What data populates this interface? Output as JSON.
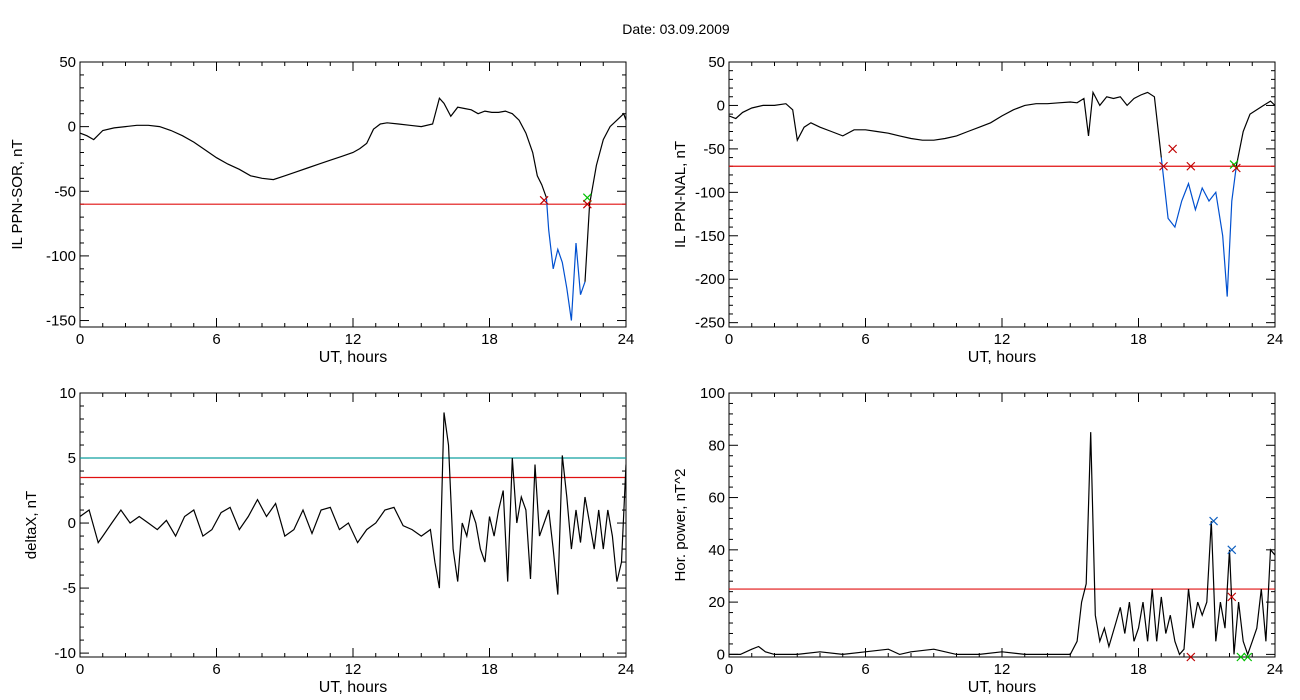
{
  "title": "Date:  03.09.2009",
  "chart_data": [
    {
      "type": "line",
      "panel": "top-left",
      "xlabel": "UT, hours",
      "ylabel": "IL PPN-SOR, nT",
      "xlim": [
        0,
        24
      ],
      "ylim": [
        -155,
        50
      ],
      "xticks": [
        0,
        6,
        12,
        18,
        24
      ],
      "yticks": [
        50,
        0,
        -50,
        -100,
        -150
      ],
      "ytick_labels": [
        "50",
        "0",
        "-50",
        "-100",
        "-150"
      ],
      "series": [
        {
          "color": "#000000",
          "x": [
            0,
            0.3,
            0.6,
            1,
            1.5,
            2,
            2.5,
            3,
            3.5,
            4,
            4.5,
            5,
            5.5,
            6,
            6.5,
            7,
            7.5,
            8,
            8.5,
            9,
            9.5,
            10,
            10.5,
            11,
            11.5,
            12,
            12.3,
            12.6,
            12.9,
            13.2,
            13.5,
            14,
            14.5,
            15,
            15.5,
            15.8,
            16,
            16.3,
            16.6,
            16.9,
            17.2,
            17.5,
            17.8,
            18.1,
            18.4,
            18.7,
            19,
            19.3,
            19.6,
            19.9,
            20.1,
            20.3,
            20.5
          ],
          "y": [
            -5,
            -7,
            -10,
            -3,
            -1,
            0,
            1,
            1,
            0,
            -3,
            -7,
            -12,
            -18,
            -24,
            -29,
            -33,
            -38,
            -40,
            -41,
            -38,
            -35,
            -32,
            -29,
            -26,
            -23,
            -20,
            -17,
            -13,
            -2,
            2,
            3,
            2,
            1,
            0,
            2,
            22,
            18,
            8,
            15,
            14,
            13,
            10,
            12,
            11,
            11,
            12,
            10,
            5,
            -5,
            -20,
            -38,
            -45,
            -55
          ]
        },
        {
          "color": "#0050d0",
          "x": [
            20.5,
            20.6,
            20.8,
            21,
            21.2,
            21.4,
            21.6,
            21.8,
            22,
            22.2
          ],
          "y": [
            -55,
            -80,
            -110,
            -95,
            -105,
            -125,
            -150,
            -90,
            -130,
            -120
          ]
        },
        {
          "color": "#000000",
          "x": [
            22.2,
            22.4,
            22.7,
            23,
            23.3,
            23.6,
            23.9,
            24
          ],
          "y": [
            -120,
            -60,
            -30,
            -10,
            0,
            5,
            10,
            5
          ]
        }
      ],
      "hlines": [
        {
          "y": -60,
          "color": "#e01010"
        }
      ],
      "markers": [
        {
          "x": 20.4,
          "y": -57,
          "color": "#c00000"
        },
        {
          "x": 22.3,
          "y": -55,
          "color": "#00c000"
        },
        {
          "x": 22.3,
          "y": -60,
          "color": "#c00000"
        }
      ]
    },
    {
      "type": "line",
      "panel": "top-right",
      "xlabel": "UT, hours",
      "ylabel": "IL PPN-NAL, nT",
      "xlim": [
        0,
        24
      ],
      "ylim": [
        -255,
        50
      ],
      "xticks": [
        0,
        6,
        12,
        18,
        24
      ],
      "yticks": [
        50,
        0,
        -50,
        -100,
        -150,
        -200,
        -250
      ],
      "ytick_labels": [
        "50",
        "0",
        "-50",
        "-100",
        "-150",
        "-200",
        "-250"
      ],
      "series": [
        {
          "color": "#000000",
          "x": [
            0,
            0.3,
            0.6,
            1,
            1.5,
            2,
            2.5,
            2.8,
            3,
            3.3,
            3.6,
            4,
            4.5,
            5,
            5.5,
            6,
            6.5,
            7,
            7.5,
            8,
            8.5,
            9,
            9.5,
            10,
            10.5,
            11,
            11.5,
            12,
            12.5,
            13,
            13.5,
            14,
            14.5,
            15,
            15.3,
            15.6,
            15.8,
            16,
            16.3,
            16.6,
            16.9,
            17.2,
            17.5,
            17.8,
            18.1,
            18.4,
            18.7,
            19
          ],
          "y": [
            -12,
            -15,
            -8,
            -3,
            0,
            0,
            2,
            -5,
            -40,
            -25,
            -20,
            -25,
            -30,
            -35,
            -28,
            -28,
            -30,
            -32,
            -35,
            -38,
            -40,
            -40,
            -38,
            -35,
            -30,
            -25,
            -20,
            -12,
            -5,
            0,
            2,
            2,
            3,
            4,
            3,
            8,
            -35,
            15,
            0,
            10,
            8,
            10,
            0,
            8,
            12,
            15,
            10,
            -60
          ]
        },
        {
          "color": "#0050d0",
          "x": [
            19,
            19.3,
            19.6,
            19.9,
            20.2,
            20.5,
            20.8,
            21.1,
            21.4,
            21.7,
            21.9,
            22.1,
            22.3
          ],
          "y": [
            -60,
            -130,
            -140,
            -110,
            -90,
            -120,
            -95,
            -110,
            -100,
            -150,
            -220,
            -110,
            -70
          ]
        },
        {
          "color": "#000000",
          "x": [
            22.3,
            22.6,
            22.9,
            23.2,
            23.5,
            23.8,
            24
          ],
          "y": [
            -70,
            -30,
            -10,
            -5,
            0,
            5,
            0
          ]
        }
      ],
      "hlines": [
        {
          "y": -70,
          "color": "#e01010"
        }
      ],
      "markers": [
        {
          "x": 19.1,
          "y": -70,
          "color": "#c00000"
        },
        {
          "x": 19.5,
          "y": -50,
          "color": "#c00000"
        },
        {
          "x": 20.3,
          "y": -70,
          "color": "#c00000"
        },
        {
          "x": 22.2,
          "y": -68,
          "color": "#00c000"
        },
        {
          "x": 22.3,
          "y": -72,
          "color": "#c00000"
        }
      ]
    },
    {
      "type": "line",
      "panel": "bottom-left",
      "xlabel": "UT, hours",
      "ylabel": "deltaX, nT",
      "xlim": [
        0,
        24
      ],
      "ylim": [
        -10.3,
        10
      ],
      "xticks": [
        0,
        6,
        12,
        18,
        24
      ],
      "yticks": [
        10,
        5,
        0,
        -5,
        -10
      ],
      "ytick_labels": [
        "10",
        "5",
        "0",
        "-5",
        "-10"
      ],
      "series": [
        {
          "color": "#000000",
          "x": [
            0,
            0.4,
            0.8,
            1,
            1.4,
            1.8,
            2.2,
            2.6,
            3,
            3.4,
            3.8,
            4.2,
            4.6,
            5,
            5.4,
            5.8,
            6.2,
            6.6,
            7,
            7.4,
            7.8,
            8.2,
            8.6,
            9,
            9.4,
            9.8,
            10.2,
            10.6,
            11,
            11.4,
            11.8,
            12.2,
            12.6,
            13,
            13.4,
            13.8,
            14.2,
            14.6,
            15,
            15.4,
            15.6,
            15.8,
            16,
            16.2,
            16.4,
            16.6,
            16.8,
            17,
            17.2,
            17.4,
            17.6,
            17.8,
            18,
            18.2,
            18.4,
            18.6,
            18.8,
            19,
            19.2,
            19.4,
            19.6,
            19.8,
            20,
            20.2,
            20.4,
            20.6,
            20.8,
            21,
            21.2,
            21.4,
            21.6,
            21.8,
            22,
            22.2,
            22.4,
            22.6,
            22.8,
            23,
            23.2,
            23.4,
            23.6,
            23.8,
            24
          ],
          "y": [
            0.5,
            1,
            -1.5,
            -1,
            0,
            1,
            0,
            0.5,
            0,
            -0.5,
            0.2,
            -1,
            0.5,
            1,
            -1,
            -0.5,
            0.8,
            1.2,
            -0.5,
            0.5,
            1.8,
            0.5,
            1.5,
            -1,
            -0.5,
            1,
            -0.8,
            1,
            1.2,
            -0.5,
            0,
            -1.5,
            -0.5,
            0,
            1,
            1.2,
            -0.2,
            -0.5,
            -1,
            -0.5,
            -3,
            -5,
            8.5,
            6,
            -2,
            -4.5,
            0,
            -1,
            1,
            0,
            -2,
            -3,
            0.5,
            -1,
            1,
            2.5,
            -4.5,
            5,
            0,
            2,
            1,
            -4.3,
            4.5,
            -1,
            0,
            1,
            -2,
            -5.5,
            5.2,
            2,
            -2,
            1,
            -1.5,
            2,
            0,
            -2,
            1,
            -2,
            1,
            -1,
            -4.5,
            -3,
            4.5
          ]
        }
      ],
      "hlines": [
        {
          "y": 5,
          "color": "#10a0a0"
        },
        {
          "y": 3.5,
          "color": "#e01010"
        }
      ],
      "markers": []
    },
    {
      "type": "line",
      "panel": "bottom-right",
      "xlabel": "UT, hours",
      "ylabel": "Hor. power, nT^2",
      "xlim": [
        0,
        24
      ],
      "ylim": [
        -1,
        100
      ],
      "xticks": [
        0,
        6,
        12,
        18,
        24
      ],
      "yticks": [
        100,
        80,
        60,
        40,
        20,
        0
      ],
      "ytick_labels": [
        "100",
        "80",
        "60",
        "40",
        "20",
        "0"
      ],
      "series": [
        {
          "color": "#000000",
          "x": [
            0,
            0.5,
            1,
            1.3,
            1.6,
            2,
            3,
            4,
            5,
            6,
            7,
            7.5,
            8,
            9,
            10,
            11,
            12,
            13,
            14,
            15,
            15.3,
            15.5,
            15.7,
            15.9,
            16.1,
            16.3,
            16.5,
            16.7,
            17,
            17.2,
            17.4,
            17.6,
            17.8,
            18,
            18.2,
            18.4,
            18.6,
            18.8,
            19,
            19.2,
            19.4,
            19.6,
            19.8,
            20,
            20.2,
            20.4,
            20.6,
            20.8,
            21,
            21.2,
            21.4,
            21.6,
            21.8,
            22,
            22.2,
            22.4,
            22.6,
            22.8,
            23,
            23.2,
            23.4,
            23.6,
            23.8,
            24
          ],
          "y": [
            0,
            0,
            2,
            3,
            1,
            0,
            0,
            1,
            0,
            1,
            2,
            0,
            1,
            2,
            0,
            0,
            1,
            0,
            0,
            0,
            5,
            20,
            27,
            85,
            15,
            5,
            10,
            3,
            12,
            18,
            8,
            20,
            5,
            10,
            20,
            5,
            25,
            5,
            22,
            8,
            15,
            5,
            0,
            2,
            25,
            10,
            20,
            15,
            20,
            51,
            5,
            20,
            10,
            40,
            0,
            20,
            5,
            0,
            5,
            10,
            25,
            5,
            40,
            38
          ]
        }
      ],
      "hlines": [
        {
          "y": 25,
          "color": "#e01010"
        }
      ],
      "markers": [
        {
          "x": 21.3,
          "y": 51,
          "color": "#1060c0"
        },
        {
          "x": 22.1,
          "y": 40,
          "color": "#1060c0"
        },
        {
          "x": 22.1,
          "y": 22,
          "color": "#c00000"
        },
        {
          "x": 20.3,
          "y": -1,
          "color": "#c00000"
        },
        {
          "x": 22.5,
          "y": -1,
          "color": "#00c000"
        },
        {
          "x": 22.8,
          "y": -1,
          "color": "#00c000"
        }
      ]
    }
  ]
}
